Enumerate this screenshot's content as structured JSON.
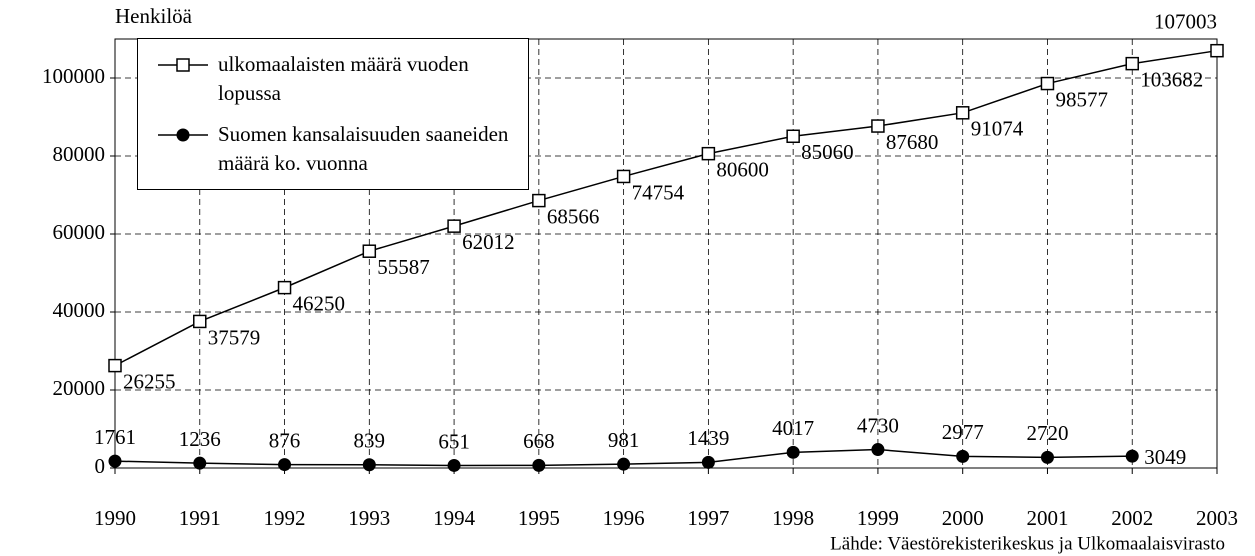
{
  "chart_data": {
    "type": "line",
    "y_label": "Henkilöä",
    "source": "Lähde: Väestörekisterikeskus ja Ulkomaalaisvirasto",
    "categories": [
      "1990",
      "1991",
      "1992",
      "1993",
      "1994",
      "1995",
      "1996",
      "1997",
      "1998",
      "1999",
      "2000",
      "2001",
      "2002",
      "2003"
    ],
    "series": [
      {
        "name": "ulkomaalaisten määrä vuoden lopussa",
        "color": "#000000",
        "marker": "square",
        "values": [
          26255,
          37579,
          46250,
          55587,
          62012,
          68566,
          74754,
          80600,
          85060,
          87680,
          91074,
          98577,
          103682,
          107003
        ]
      },
      {
        "name": "Suomen kansalaisuuden saaneiden määrä ko. vuonna",
        "color": "#000000",
        "marker": "circle",
        "values": [
          1761,
          1236,
          876,
          839,
          651,
          668,
          981,
          1439,
          4017,
          4730,
          2977,
          2720,
          3049,
          null
        ]
      }
    ],
    "ylim": [
      0,
      110000
    ],
    "yticks": [
      0,
      20000,
      40000,
      60000,
      80000,
      100000
    ],
    "grid": true
  }
}
